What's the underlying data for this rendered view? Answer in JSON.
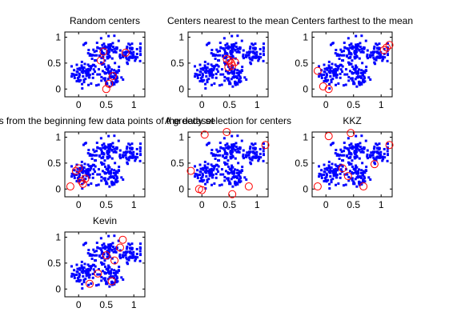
{
  "figure": {
    "background": "#ffffff",
    "point_color": "#0000ff",
    "center_color": "#ff0000"
  },
  "chart_data": [
    {
      "type": "scatter",
      "title": "Random centers",
      "xlim": [
        -0.25,
        1.2
      ],
      "ylim": [
        -0.15,
        1.1
      ],
      "xticks": [
        0,
        0.5,
        1
      ],
      "xtick_labels": [
        "0",
        "0.5",
        "1"
      ],
      "yticks": [
        0,
        0.5,
        1
      ],
      "ytick_labels": [
        "0",
        "0.5",
        "1"
      ],
      "centers": {
        "x": [
          0.45,
          0.62,
          0.5,
          0.85,
          0.4,
          0.55
        ],
        "y": [
          0.72,
          0.25,
          0.0,
          0.7,
          0.55,
          0.1
        ]
      }
    },
    {
      "type": "scatter",
      "title": "Centers nearest to the mean",
      "xlim": [
        -0.25,
        1.2
      ],
      "ylim": [
        -0.15,
        1.1
      ],
      "xticks": [
        0,
        0.5,
        1
      ],
      "xtick_labels": [
        "0",
        "0.5",
        "1"
      ],
      "yticks": [
        0,
        0.5,
        1
      ],
      "ytick_labels": [
        "0",
        "0.5",
        "1"
      ],
      "centers": {
        "x": [
          0.45,
          0.5,
          0.53,
          0.55,
          0.48,
          0.6
        ],
        "y": [
          0.58,
          0.55,
          0.5,
          0.45,
          0.42,
          0.52
        ]
      }
    },
    {
      "type": "scatter",
      "title": "Centers farthest to the mean",
      "xlim": [
        -0.25,
        1.2
      ],
      "ylim": [
        -0.15,
        1.1
      ],
      "xticks": [
        0,
        0.5,
        1
      ],
      "xtick_labels": [
        "0",
        "0.5",
        "1"
      ],
      "yticks": [
        0,
        0.5,
        1
      ],
      "ytick_labels": [
        "0",
        "0.5",
        "1"
      ],
      "centers": {
        "x": [
          -0.15,
          -0.05,
          0.05,
          1.05,
          1.1,
          1.15
        ],
        "y": [
          0.35,
          0.05,
          0.0,
          0.75,
          0.8,
          0.85
        ]
      }
    },
    {
      "type": "scatter",
      "title": "rs from the beginning few data points of the dataset",
      "xlim": [
        -0.25,
        1.2
      ],
      "ylim": [
        -0.15,
        1.1
      ],
      "xticks": [
        0,
        0.5,
        1
      ],
      "xtick_labels": [
        "0",
        "0.5",
        "1"
      ],
      "yticks": [
        0,
        0.5,
        1
      ],
      "ytick_labels": [
        "0",
        "0.5",
        "1"
      ],
      "centers": {
        "x": [
          -0.05,
          0.0,
          0.05,
          -0.15,
          0.12,
          0.08
        ],
        "y": [
          0.35,
          0.4,
          0.15,
          0.05,
          0.2,
          0.1
        ]
      }
    },
    {
      "type": "scatter",
      "title": "A greedy selection for centers",
      "xlim": [
        -0.25,
        1.2
      ],
      "ylim": [
        -0.15,
        1.1
      ],
      "xticks": [
        0,
        0.5,
        1
      ],
      "xtick_labels": [
        "0",
        "0.5",
        "1"
      ],
      "yticks": [
        0,
        0.5,
        1
      ],
      "ytick_labels": [
        "0",
        "0.5",
        "1"
      ],
      "centers": {
        "x": [
          0.05,
          0.45,
          1.15,
          0.55,
          -0.2,
          -0.05,
          0.85,
          0.0
        ],
        "y": [
          1.05,
          1.1,
          0.85,
          -0.1,
          0.35,
          0.0,
          0.05,
          -0.02
        ]
      }
    },
    {
      "type": "scatter",
      "title": "KKZ",
      "xlim": [
        -0.25,
        1.2
      ],
      "ylim": [
        -0.15,
        1.1
      ],
      "xticks": [
        0,
        0.5,
        1
      ],
      "xtick_labels": [
        "0",
        "0.5",
        "1"
      ],
      "yticks": [
        0,
        0.5,
        1
      ],
      "ytick_labels": [
        "0",
        "0.5",
        "1"
      ],
      "centers": {
        "x": [
          0.05,
          0.45,
          1.15,
          0.88,
          -0.15,
          0.68,
          0.3,
          0.4
        ],
        "y": [
          1.02,
          1.08,
          0.85,
          0.48,
          0.05,
          0.05,
          0.4,
          0.25
        ]
      }
    },
    {
      "type": "scatter",
      "title": "Kevin",
      "xlim": [
        -0.25,
        1.2
      ],
      "ylim": [
        -0.15,
        1.1
      ],
      "xticks": [
        0,
        0.5,
        1
      ],
      "xtick_labels": [
        "0",
        "0.5",
        "1"
      ],
      "yticks": [
        0,
        0.5,
        1
      ],
      "ytick_labels": [
        "0",
        "0.5",
        "1"
      ],
      "centers": {
        "x": [
          0.8,
          0.75,
          0.5,
          0.65,
          0.35,
          0.2,
          0.6
        ],
        "y": [
          0.95,
          0.8,
          0.65,
          0.55,
          0.3,
          0.1,
          0.15
        ]
      }
    }
  ]
}
